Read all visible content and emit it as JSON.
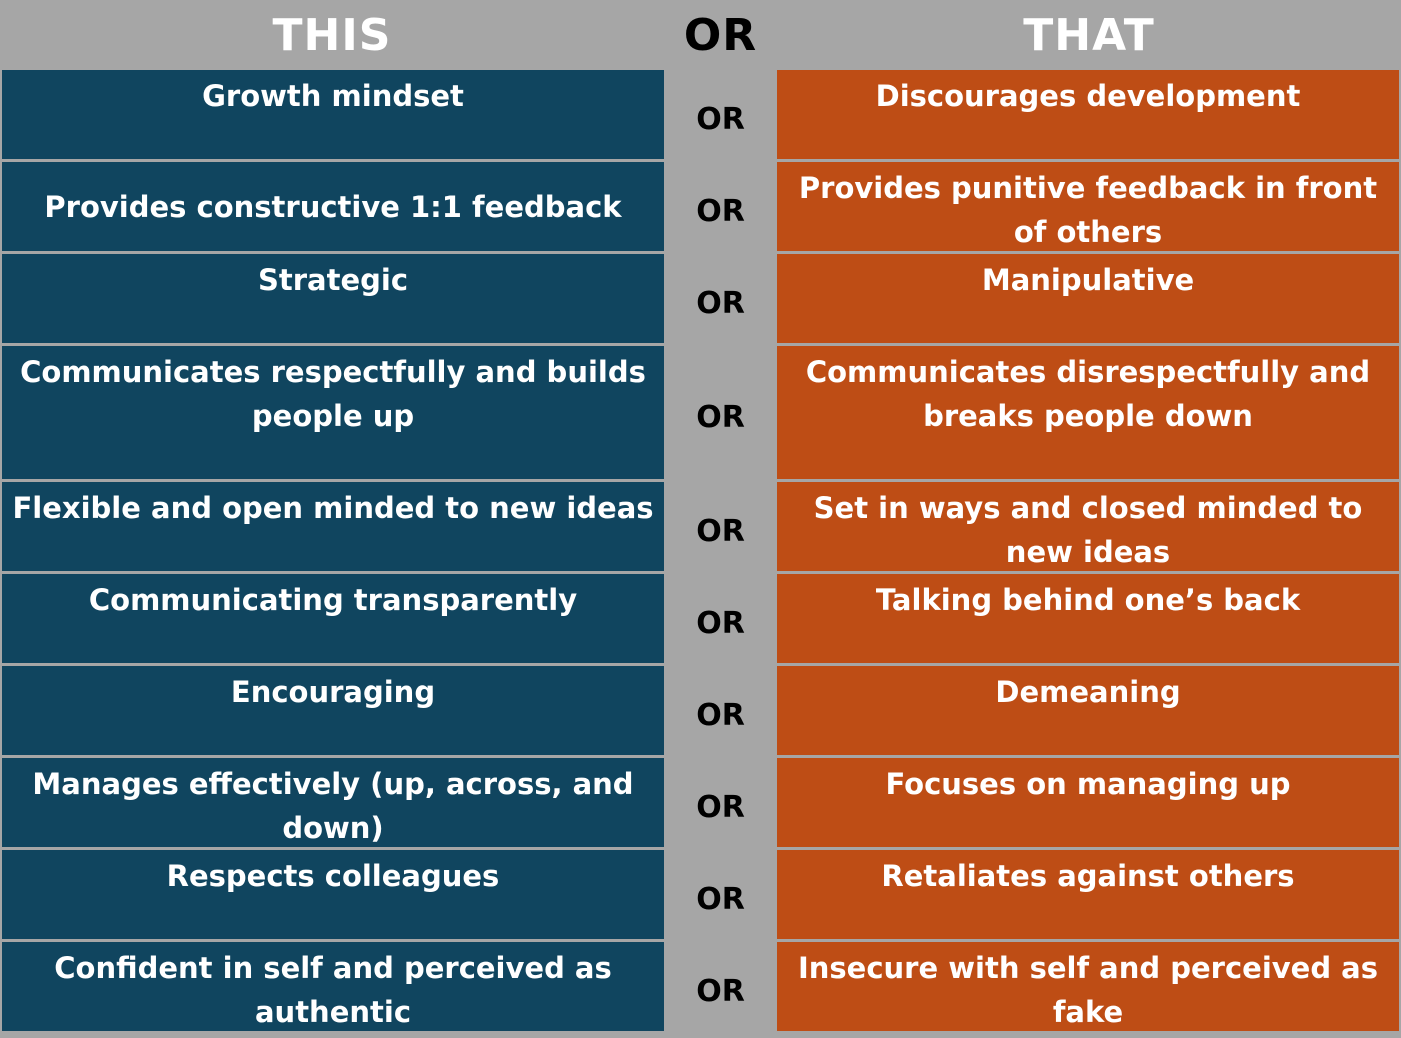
{
  "header": {
    "this": "THIS",
    "or": "OR",
    "that": "THAT"
  },
  "colors": {
    "header_bg": "#a6a6a6",
    "this_bg": "#10455f",
    "that_bg": "#be4d15"
  },
  "rows": [
    {
      "this": "Growth mindset",
      "or": "OR",
      "that": "Discourages development"
    },
    {
      "this": "Provides constructive 1:1 feedback",
      "or": "OR",
      "that": "Provides punitive feedback in front of others"
    },
    {
      "this": "Strategic",
      "or": "OR",
      "that": "Manipulative"
    },
    {
      "this": "Communicates respectfully and builds people up",
      "or": "OR",
      "that": "Communicates disrespectfully and breaks people down"
    },
    {
      "this": "Flexible and open minded to new ideas",
      "or": "OR",
      "that": "Set in ways and closed minded to new ideas"
    },
    {
      "this": "Communicating transparently",
      "or": "OR",
      "that": "Talking behind one’s back"
    },
    {
      "this": "Encouraging",
      "or": "OR",
      "that": "Demeaning"
    },
    {
      "this": "Manages effectively (up, across, and down)",
      "or": "OR",
      "that": "Focuses on managing up"
    },
    {
      "this": "Respects colleagues",
      "or": "OR",
      "that": "Retaliates against others"
    },
    {
      "this": "Confident in self and perceived as authentic",
      "or": "OR",
      "that": "Insecure with self and perceived as fake"
    }
  ]
}
